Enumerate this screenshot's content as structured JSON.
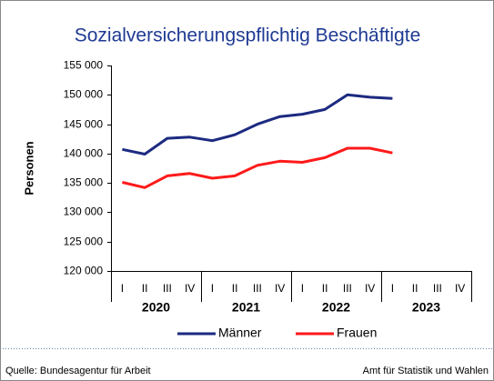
{
  "chart_data": {
    "type": "line",
    "title": "Sozialversicherungspflichtig Beschäftigte",
    "ylabel": "Personen",
    "categories": [
      "I",
      "II",
      "III",
      "IV",
      "I",
      "II",
      "III",
      "IV",
      "I",
      "II",
      "III",
      "IV",
      "I",
      "II",
      "III",
      "IV"
    ],
    "years": [
      "2020",
      "2021",
      "2022",
      "2023"
    ],
    "ylim": [
      120000,
      155000
    ],
    "yticks": [
      {
        "value": 120000,
        "label": "120 000"
      },
      {
        "value": 125000,
        "label": "125 000"
      },
      {
        "value": 130000,
        "label": "130 000"
      },
      {
        "value": 135000,
        "label": "135 000"
      },
      {
        "value": 140000,
        "label": "140 000"
      },
      {
        "value": 145000,
        "label": "145 000"
      },
      {
        "value": 150000,
        "label": "150 000"
      },
      {
        "value": 155000,
        "label": "155 000"
      }
    ],
    "series": [
      {
        "name": "Männer",
        "color": "#1c2a80",
        "values": [
          140700,
          139900,
          142600,
          142800,
          142200,
          143200,
          145000,
          146300,
          146700,
          147500,
          150000,
          149600,
          149400,
          null,
          null,
          null
        ]
      },
      {
        "name": "Frauen",
        "color": "#ff1a1a",
        "values": [
          135100,
          134200,
          136200,
          136600,
          135800,
          136200,
          138000,
          138700,
          138500,
          139300,
          140900,
          140900,
          140100,
          null,
          null,
          null
        ]
      }
    ],
    "source": "Quelle: Bundesagentur für Arbeit",
    "publisher": "Amt für Statistik und Wahlen"
  }
}
